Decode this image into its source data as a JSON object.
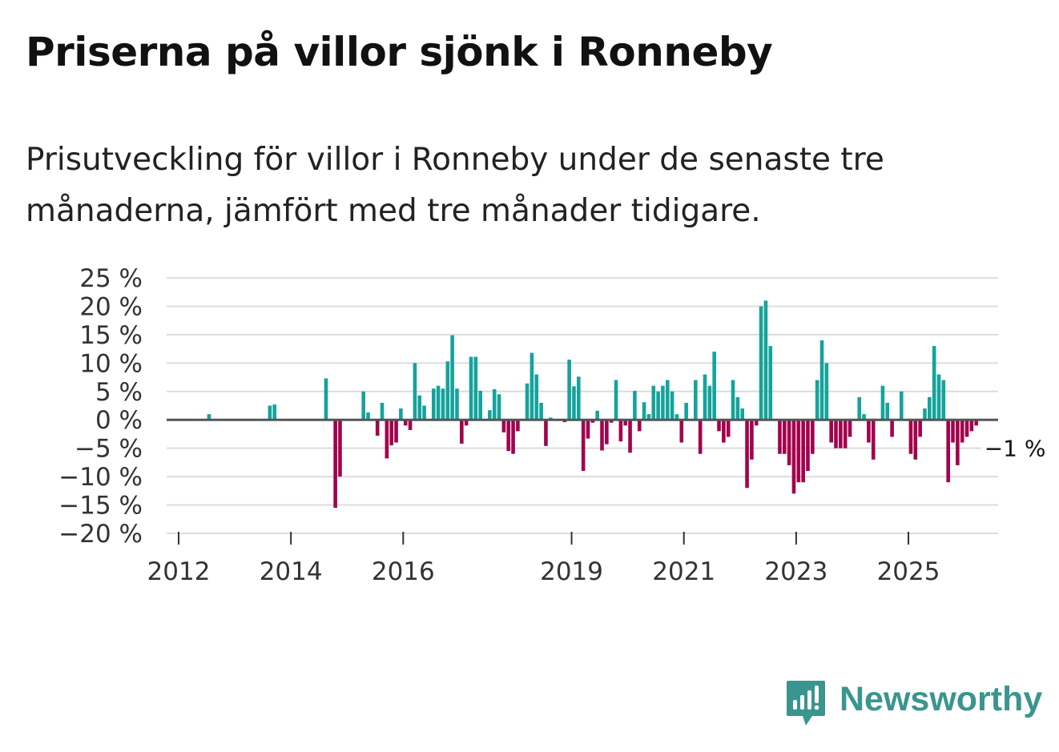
{
  "title": "Priserna på villor sjönk i Ronneby",
  "subtitle": "Prisutveckling för villor i Ronneby under de senaste tre månaderna, jämfört med tre månader tidigare.",
  "brand": {
    "name": "Newsworthy",
    "icon": "newsworthy-logo-icon"
  },
  "colors": {
    "positive": "#15a39c",
    "negative": "#a3004c",
    "grid": "#dcdcdc",
    "zero": "#555555"
  },
  "chart_data": {
    "type": "bar",
    "title": "Priserna på villor sjönk i Ronneby",
    "ylabel": "",
    "xlabel": "",
    "ylim": [
      -20,
      25
    ],
    "yticks": [
      25,
      20,
      15,
      10,
      5,
      0,
      -5,
      -10,
      -15,
      -20
    ],
    "ytick_labels": [
      "25 %",
      "20 %",
      "15 %",
      "10 %",
      "5 %",
      "0 %",
      "−5 %",
      "−10 %",
      "−15 %",
      "−20 %"
    ],
    "xticks": [
      {
        "label": "2012",
        "month_index": 0
      },
      {
        "label": "2014",
        "month_index": 24
      },
      {
        "label": "2016",
        "month_index": 48
      },
      {
        "label": "2019",
        "month_index": 84
      },
      {
        "label": "2021",
        "month_index": 108
      },
      {
        "label": "2023",
        "month_index": 132
      },
      {
        "label": "2025",
        "month_index": 156
      }
    ],
    "x_end_month_index": 176,
    "end_label": "−1 %",
    "series": [
      {
        "name": "Prisutveckling",
        "start": "2012-01",
        "values": [
          0,
          0,
          0,
          0,
          0,
          0,
          1,
          0,
          0,
          0,
          0,
          0,
          0,
          0,
          0,
          0,
          0,
          0,
          0,
          2.5,
          2.7,
          0,
          0,
          0,
          0,
          0,
          0,
          0,
          0,
          0,
          0,
          7.3,
          0,
          -15.5,
          -10,
          0,
          0,
          0,
          0,
          5,
          1.3,
          0,
          -2.8,
          3,
          -6.8,
          -4.5,
          -4,
          2,
          -1,
          -1.8,
          10,
          4.3,
          2.5,
          0,
          5.5,
          6,
          5.5,
          10.3,
          14.9,
          5.5,
          -4.2,
          -1,
          11.1,
          11.1,
          5.1,
          0,
          1.7,
          5.4,
          4.5,
          -2.2,
          -5.5,
          -6,
          -2,
          0,
          6.4,
          11.8,
          8,
          3,
          -4.6,
          0.4,
          0,
          0,
          -0.4,
          10.6,
          5.9,
          7.6,
          -9,
          -3.3,
          -0.5,
          1.6,
          -5.4,
          -4.3,
          -0.5,
          7,
          -3.8,
          -1,
          -5.8,
          5.1,
          -2,
          3.1,
          1,
          6,
          5,
          6,
          7,
          5,
          1,
          -4,
          3,
          0,
          7,
          -6,
          8,
          6,
          12,
          -2,
          -4,
          -3,
          7,
          4,
          2,
          -12,
          -7,
          -1,
          20,
          21,
          13,
          0,
          -6,
          -6,
          -8,
          -13,
          -11,
          -11,
          -9,
          -6,
          7,
          14,
          10,
          -4,
          -5,
          -5,
          -5,
          -3,
          0,
          4,
          1,
          -4,
          -7,
          0,
          6,
          3,
          -3,
          0,
          5,
          0,
          -6,
          -7,
          -3,
          2,
          4,
          13,
          8,
          7,
          -11,
          -4,
          -8,
          -4,
          -3,
          -2,
          -1
        ]
      }
    ]
  }
}
